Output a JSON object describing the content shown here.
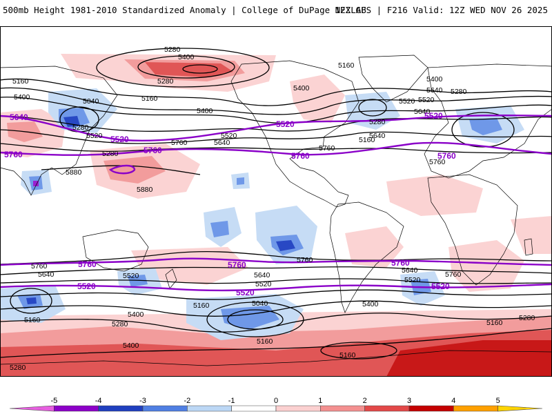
{
  "header": {
    "title": "500mb Height 1981-2010 Standardized Anomaly | College of DuPage NEXLAB",
    "run_info": "12Z GFS | F216 Valid: 12Z WED NOV 26 2025"
  },
  "colorbar": {
    "ticks": [
      "-5",
      "-4",
      "-3",
      "-2",
      "-1",
      "0",
      "1",
      "2",
      "3",
      "4",
      "5"
    ],
    "colors": [
      "#e75fe0",
      "#8c00c8",
      "#1f3fbf",
      "#4f7fe3",
      "#bcd7f5",
      "#ffffff",
      "#fbd0d0",
      "#f49090",
      "#e34848",
      "#c40000",
      "#ffa000",
      "#ffd400"
    ]
  },
  "map": {
    "colors": {
      "neg1": "#c6dcf5",
      "neg2": "#6f98e8",
      "neg3": "#2848c4",
      "neg4": "#9a20d0",
      "pos1": "#fbd3d3",
      "pos2": "#f29c9c",
      "pos3": "#e05656",
      "pos4": "#c81818",
      "contour": "#000000",
      "reference": "#8a00c8",
      "coast": "#000000"
    },
    "contour_labels": [
      {
        "id": "c1",
        "text": "5280"
      },
      {
        "id": "c2",
        "text": "5400"
      },
      {
        "id": "c3",
        "text": "5160"
      },
      {
        "id": "c4",
        "text": "5160"
      },
      {
        "id": "c5",
        "text": "5400"
      },
      {
        "id": "c6",
        "text": "5040"
      },
      {
        "id": "c7",
        "text": "5280"
      },
      {
        "id": "c8",
        "text": "5160"
      },
      {
        "id": "c9",
        "text": "5400"
      },
      {
        "id": "c10",
        "text": "5400"
      },
      {
        "id": "c11",
        "text": "5280"
      },
      {
        "id": "c12",
        "text": "5520"
      },
      {
        "id": "c13",
        "text": "5280"
      },
      {
        "id": "c14",
        "text": "5640"
      },
      {
        "id": "c15",
        "text": "5520"
      },
      {
        "id": "c16",
        "text": "5640"
      },
      {
        "id": "c17",
        "text": "5760"
      },
      {
        "id": "c18",
        "text": "5520"
      },
      {
        "id": "c19",
        "text": "5640"
      },
      {
        "id": "c20",
        "text": "5760"
      },
      {
        "id": "c21",
        "text": "5880"
      },
      {
        "id": "c22",
        "text": "5880"
      },
      {
        "id": "c23",
        "text": "5760"
      },
      {
        "id": "c24",
        "text": "5640"
      },
      {
        "id": "c25",
        "text": "5520"
      },
      {
        "id": "c26",
        "text": "5400"
      },
      {
        "id": "c27",
        "text": "5160"
      },
      {
        "id": "c28",
        "text": "5280"
      },
      {
        "id": "c29",
        "text": "5280"
      },
      {
        "id": "c30",
        "text": "5760"
      },
      {
        "id": "c31",
        "text": "5640"
      },
      {
        "id": "c32",
        "text": "5520"
      },
      {
        "id": "c33",
        "text": "5400"
      },
      {
        "id": "c34",
        "text": "5160"
      },
      {
        "id": "c35",
        "text": "5040"
      },
      {
        "id": "c36",
        "text": "5640"
      },
      {
        "id": "c37",
        "text": "5520"
      },
      {
        "id": "c38",
        "text": "5400"
      },
      {
        "id": "c39",
        "text": "5760"
      },
      {
        "id": "c40",
        "text": "5160"
      },
      {
        "id": "c41",
        "text": "5160"
      },
      {
        "id": "c42",
        "text": "5160"
      },
      {
        "id": "c43",
        "text": "5280"
      },
      {
        "id": "c44",
        "text": "5400"
      },
      {
        "id": "c45",
        "text": "5160"
      },
      {
        "id": "c46",
        "text": "5280"
      },
      {
        "id": "c47",
        "text": "5280"
      },
      {
        "id": "c48",
        "text": "5520"
      },
      {
        "id": "c49",
        "text": "5640"
      },
      {
        "id": "c50",
        "text": "5760"
      }
    ],
    "reference_labels": [
      {
        "id": "r1",
        "text": "5640"
      },
      {
        "id": "r2",
        "text": "5520"
      },
      {
        "id": "r3",
        "text": "5520"
      },
      {
        "id": "r4",
        "text": "5520"
      },
      {
        "id": "r5",
        "text": "5760"
      },
      {
        "id": "r6",
        "text": "5760"
      },
      {
        "id": "r7",
        "text": "5760"
      },
      {
        "id": "r8",
        "text": "5760"
      },
      {
        "id": "r9",
        "text": "5520"
      },
      {
        "id": "r10",
        "text": "5520"
      },
      {
        "id": "r11",
        "text": "5520"
      },
      {
        "id": "r12",
        "text": "5760"
      },
      {
        "id": "r13",
        "text": "5760"
      },
      {
        "id": "r14",
        "text": "5760"
      }
    ]
  }
}
